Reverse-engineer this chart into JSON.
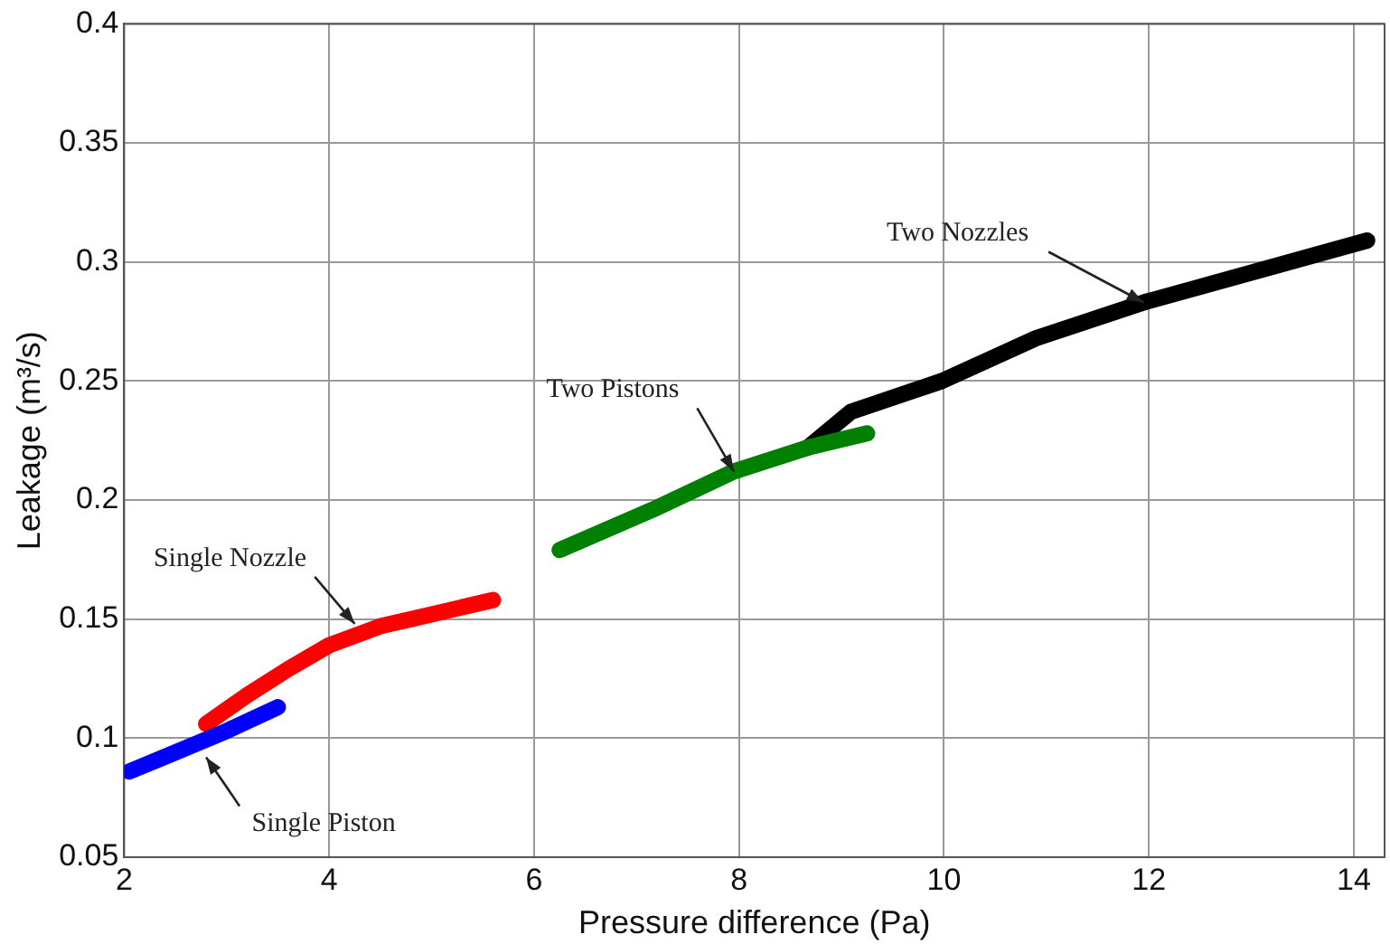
{
  "chart_data": {
    "type": "line",
    "xlabel": "Pressure difference (Pa)",
    "ylabel": "Leakage (m³/s)",
    "xlim": [
      2,
      14.3
    ],
    "xticks": [
      2,
      4,
      6,
      8,
      10,
      12,
      14
    ],
    "ylim": [
      0.05,
      0.4
    ],
    "yticks": [
      {
        "value": 0.05,
        "label": "0.05"
      },
      {
        "value": 0.1,
        "label": "0.1"
      },
      {
        "value": 0.15,
        "label": "0.15"
      },
      {
        "value": 0.2,
        "label": "0.2"
      },
      {
        "value": 0.25,
        "label": "0.25"
      },
      {
        "value": 0.3,
        "label": "0.3"
      },
      {
        "value": 0.35,
        "label": "0.35"
      },
      {
        "value": 0.4,
        "label": "0.4"
      }
    ],
    "grid": true,
    "legend": false,
    "series": [
      {
        "color": "#0000ff",
        "x": [
          2.05,
          2.5,
          3.0,
          3.5
        ],
        "values": [
          0.086,
          0.094,
          0.103,
          0.113
        ]
      },
      {
        "color": "#ff0000",
        "x": [
          2.8,
          3.2,
          3.6,
          4.0,
          4.5,
          5.0,
          5.6
        ],
        "values": [
          0.106,
          0.118,
          0.129,
          0.139,
          0.147,
          0.152,
          0.158
        ]
      },
      {
        "color": "#008000",
        "x": [
          6.25,
          7.16,
          7.95,
          8.67,
          9.25
        ],
        "values": [
          0.179,
          0.196,
          0.212,
          0.222,
          0.228
        ]
      },
      {
        "color": "#000000",
        "x": [
          8.67,
          9.09,
          9.98,
          10.9,
          11.95,
          14.13
        ],
        "values": [
          0.222,
          0.237,
          0.25,
          0.268,
          0.283,
          0.309
        ]
      }
    ],
    "annotations": [
      {
        "text": "Single Nozzle",
        "x": 4.25,
        "y": 0.148
      },
      {
        "text": "Single Piston",
        "x": 2.8,
        "y": 0.092
      },
      {
        "text": "Two Pistons",
        "x": 7.95,
        "y": 0.212
      },
      {
        "text": "Two Nozzles",
        "x": 11.95,
        "y": 0.283
      }
    ]
  }
}
